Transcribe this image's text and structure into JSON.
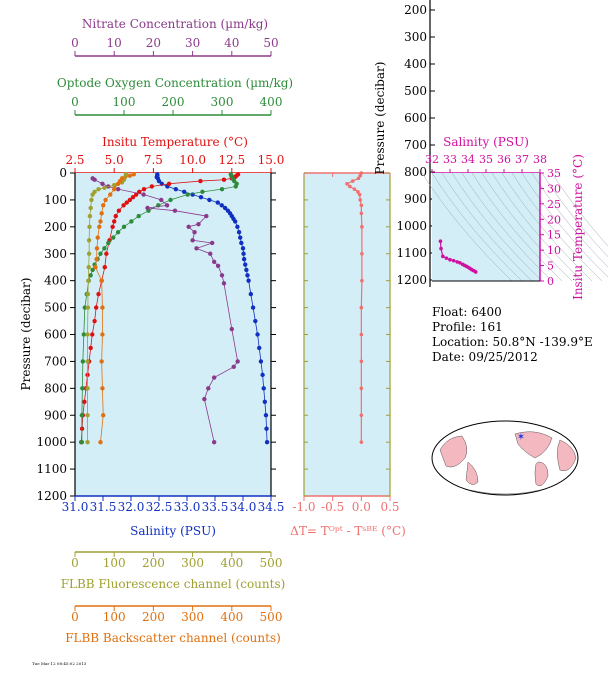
{
  "colors": {
    "nitrate": "#8b3a8b",
    "oxygen": "#2e8b3a",
    "temperature": "#e01010",
    "salinity": "#1030c0",
    "fluorescence": "#a0a030",
    "backscatter": "#e07010",
    "delta_t": "#f07070",
    "panel_bg": "#d4eef8",
    "ts_color": "#d010a0"
  },
  "float_info": {
    "float": "Float:  6400",
    "profile": "Profile:  161",
    "location": "Location:  50.8°N  -139.9°E",
    "date": "Date:  09/25/2012"
  },
  "footer_text": "Tue Mar 12 08:45:02 2013",
  "chart_data": [
    {
      "type": "line",
      "id": "main-profile",
      "ylabel": "Pressure (decibar)",
      "ylim": [
        1200,
        0
      ],
      "yticks": [
        0,
        100,
        200,
        300,
        400,
        500,
        600,
        700,
        800,
        900,
        1000,
        1100,
        1200
      ],
      "grid": false,
      "axes": {
        "nitrate": {
          "label": "Nitrate Concentration (µm/kg)",
          "range": [
            0,
            50
          ],
          "ticks": [
            0,
            10,
            20,
            30,
            40,
            50
          ]
        },
        "oxygen": {
          "label": "Optode Oxygen Concentration (µm/kg)",
          "range": [
            0,
            400
          ],
          "ticks": [
            0,
            100,
            200,
            300,
            400
          ]
        },
        "temperature": {
          "label": "Insitu Temperature (°C)",
          "range": [
            2.5,
            15
          ],
          "ticks": [
            "2.5",
            "5.0",
            "7.5",
            "10.0",
            "12.5",
            "15.0"
          ]
        },
        "salinity": {
          "label": "Salinity (PSU)",
          "range": [
            31,
            34.5
          ],
          "ticks": [
            "31.0",
            "31.5",
            "32.0",
            "32.5",
            "33.0",
            "33.5",
            "34.0",
            "34.5"
          ]
        },
        "fluorescence": {
          "label": "FLBB Fluorescence channel (counts)",
          "range": [
            0,
            500
          ],
          "ticks": [
            0,
            100,
            200,
            300,
            400,
            500
          ]
        },
        "backscatter": {
          "label": "FLBB Backscatter channel (counts)",
          "range": [
            0,
            500
          ],
          "ticks": [
            0,
            100,
            200,
            300,
            400,
            500
          ]
        }
      },
      "series": [
        {
          "key": "salinity",
          "pressure": [
            5,
            10,
            15,
            20,
            30,
            40,
            50,
            60,
            70,
            80,
            90,
            100,
            110,
            120,
            130,
            140,
            150,
            160,
            170,
            180,
            200,
            220,
            240,
            260,
            280,
            300,
            320,
            340,
            360,
            380,
            400,
            450,
            500,
            550,
            600,
            650,
            700,
            750,
            800,
            850,
            900,
            950,
            1000
          ],
          "values": [
            32.47,
            32.47,
            32.46,
            32.48,
            32.5,
            32.55,
            32.65,
            32.8,
            32.95,
            33.1,
            33.25,
            33.4,
            33.55,
            33.62,
            33.68,
            33.73,
            33.77,
            33.8,
            33.83,
            33.86,
            33.9,
            33.93,
            33.95,
            33.97,
            34.0,
            34.01,
            34.02,
            34.04,
            34.06,
            34.08,
            34.1,
            34.14,
            34.18,
            34.22,
            34.26,
            34.29,
            34.32,
            34.35,
            34.37,
            34.39,
            34.41,
            34.42,
            34.43
          ]
        },
        {
          "key": "temperature",
          "pressure": [
            5,
            10,
            15,
            20,
            25,
            30,
            40,
            50,
            60,
            70,
            80,
            90,
            100,
            110,
            120,
            140,
            160,
            180,
            200,
            250,
            300,
            350,
            400,
            450,
            500,
            550,
            600,
            650,
            700,
            750,
            800,
            850,
            900,
            950,
            1000
          ],
          "values": [
            12.9,
            12.8,
            12.7,
            12.5,
            12.0,
            10.5,
            8.5,
            7.4,
            6.9,
            6.6,
            6.4,
            6.2,
            6.0,
            5.8,
            5.6,
            5.3,
            5.1,
            5.0,
            4.9,
            4.7,
            4.5,
            4.4,
            4.2,
            4.0,
            3.85,
            3.75,
            3.6,
            3.5,
            3.4,
            3.3,
            3.2,
            3.1,
            3.0,
            2.95,
            2.9
          ]
        },
        {
          "key": "oxygen",
          "pressure": [
            5,
            10,
            20,
            30,
            40,
            50,
            60,
            70,
            80,
            100,
            120,
            140,
            160,
            180,
            200,
            220,
            240,
            260,
            280,
            300,
            320,
            340,
            360,
            380,
            400,
            450,
            500,
            600,
            700,
            800,
            900,
            1000
          ],
          "values": [
            318,
            319,
            322,
            325,
            330,
            328,
            300,
            260,
            230,
            195,
            170,
            150,
            130,
            115,
            100,
            88,
            78,
            68,
            60,
            52,
            46,
            40,
            36,
            32,
            28,
            24,
            20,
            18,
            16,
            15,
            14,
            14
          ]
        },
        {
          "key": "nitrate",
          "pressure": [
            20,
            25,
            40,
            50,
            60,
            80,
            100,
            120,
            130,
            140,
            160,
            190,
            200,
            220,
            250,
            260,
            280,
            300,
            330,
            345,
            380,
            410,
            580,
            700,
            720,
            760,
            800,
            840,
            1000
          ],
          "values": [
            4.5,
            5.0,
            7.0,
            8.5,
            11.0,
            17.5,
            22.0,
            23.5,
            18.5,
            25.5,
            33.5,
            31.5,
            29.0,
            30.5,
            30.0,
            35.0,
            31.0,
            34.5,
            35.5,
            36.5,
            37.5,
            38.0,
            40.0,
            41.5,
            40.5,
            35.5,
            34.0,
            33.0,
            35.5
          ]
        },
        {
          "key": "fluorescence",
          "pressure": [
            5,
            15,
            25,
            35,
            45,
            55,
            60,
            70,
            80,
            100,
            130,
            160,
            200,
            250,
            300,
            350,
            400,
            450,
            500,
            600,
            700,
            800,
            900,
            1000
          ],
          "values": [
            130,
            128,
            125,
            120,
            100,
            75,
            60,
            50,
            45,
            42,
            40,
            38,
            37,
            36,
            36,
            35,
            34,
            33,
            33,
            32,
            32,
            32,
            32,
            32
          ]
        },
        {
          "key": "backscatter",
          "pressure": [
            5,
            10,
            20,
            30,
            40,
            60,
            80,
            100,
            120,
            150,
            180,
            200,
            240,
            280,
            320,
            350,
            400,
            500,
            600,
            700,
            800,
            900,
            1000
          ],
          "values": [
            150,
            140,
            120,
            115,
            110,
            100,
            90,
            78,
            72,
            68,
            65,
            62,
            58,
            56,
            55,
            52,
            68,
            70,
            70,
            68,
            70,
            72,
            65
          ]
        }
      ]
    },
    {
      "type": "line",
      "id": "delta-t",
      "xlabel": "ΔT= Tᴼᵖᵗ - Tˢᴮᴱ (°C)",
      "xlim": [
        -1.0,
        0.5
      ],
      "xticks": [
        "-1.0",
        "-0.5",
        "0.0",
        "0.5"
      ],
      "ylim": [
        1200,
        0
      ],
      "series": [
        {
          "name": "",
          "pressure": [
            0,
            10,
            20,
            30,
            40,
            50,
            60,
            70,
            80,
            100,
            120,
            150,
            200,
            300,
            400,
            500,
            600,
            700,
            800,
            900,
            1000
          ],
          "values": [
            0.0,
            -0.02,
            -0.05,
            -0.15,
            -0.25,
            -0.2,
            -0.12,
            -0.06,
            -0.03,
            -0.02,
            0.0,
            0.0,
            0.01,
            0.01,
            0.01,
            0.0,
            0.0,
            0.0,
            0.0,
            0.0,
            0.0
          ]
        }
      ]
    },
    {
      "type": "line",
      "id": "pressure-strip",
      "ylabel": "Pressure (decibar)",
      "yticks": [
        200,
        300,
        400,
        500,
        600,
        700,
        800,
        900,
        1000,
        1100,
        1200
      ]
    },
    {
      "type": "scatter",
      "id": "ts-diagram",
      "xlabel": "Salinity (PSU)",
      "ylabel": "Insitu Temperature (°C)",
      "xlim": [
        32,
        38
      ],
      "ylim": [
        0,
        35
      ],
      "xticks": [
        32,
        33,
        34,
        35,
        36,
        37,
        38
      ],
      "yticks": [
        0,
        5,
        10,
        15,
        20,
        25,
        30,
        35
      ],
      "series": [
        {
          "name": "",
          "x": [
            32.47,
            32.5,
            32.6,
            32.8,
            33.0,
            33.2,
            33.4,
            33.55,
            33.7,
            33.8,
            33.9,
            34.0,
            34.1,
            34.2,
            34.3,
            34.4,
            34.43
          ],
          "y": [
            12.9,
            10.5,
            8.0,
            7.4,
            6.9,
            6.6,
            6.2,
            5.9,
            5.4,
            5.1,
            4.8,
            4.5,
            4.1,
            3.7,
            3.4,
            3.1,
            2.9
          ]
        }
      ]
    }
  ]
}
